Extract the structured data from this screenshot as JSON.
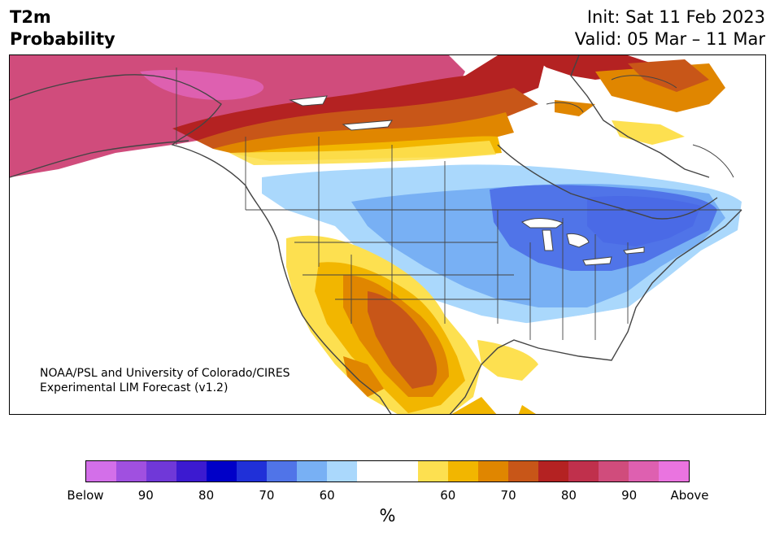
{
  "header": {
    "variable": "T2m",
    "product": "Probability",
    "init": "Init: Sat 11 Feb 2023",
    "valid": "Valid: 05 Mar – 11 Mar"
  },
  "credit": {
    "line1": "NOAA/PSL and University of Colorado/CIRES",
    "line2": "Experimental LIM Forecast (v1.2)"
  },
  "colorbar": {
    "colors": [
      "#d36fe9",
      "#a050e0",
      "#7038d8",
      "#3c1ad0",
      "#0000c8",
      "#2030d8",
      "#5074e8",
      "#78b0f4",
      "#aad8fc",
      "#ffffff",
      "#ffffff",
      "#fde050",
      "#f2b600",
      "#e08600",
      "#c85618",
      "#b42222",
      "#c0304c",
      "#d04c7c",
      "#de60b0",
      "#ea74e0"
    ],
    "tick_labels": [
      "Below",
      "90",
      "80",
      "70",
      "60",
      "60",
      "70",
      "80",
      "90",
      "Above"
    ],
    "units": "%"
  },
  "map": {
    "region": "North America",
    "legend_categories": {
      "below": "Below-normal temperature probability (blue/purple shades)",
      "above": "Above-normal temperature probability (yellow/red/magenta shades)"
    }
  }
}
